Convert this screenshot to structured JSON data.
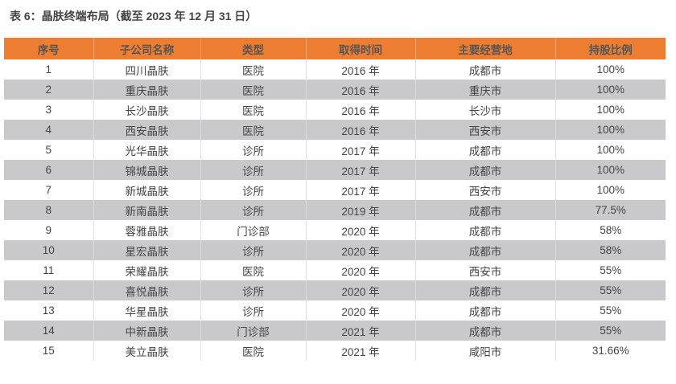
{
  "title": "表 6：晶肤终端布局（截至 2023 年 12 月 31 日）",
  "colors": {
    "header": "#ED7D31",
    "alt_row": "#C9C9CB"
  },
  "table": {
    "headers": [
      "序号",
      "子公司名称",
      "类型",
      "取得时间",
      "主要经营地",
      "持股比例"
    ],
    "rows": [
      [
        "1",
        "四川晶肤",
        "医院",
        "2016 年",
        "成都市",
        "100%"
      ],
      [
        "2",
        "重庆晶肤",
        "医院",
        "2016 年",
        "重庆市",
        "100%"
      ],
      [
        "3",
        "长沙晶肤",
        "医院",
        "2016 年",
        "长沙市",
        "100%"
      ],
      [
        "4",
        "西安晶肤",
        "医院",
        "2016 年",
        "西安市",
        "100%"
      ],
      [
        "5",
        "光华晶肤",
        "诊所",
        "2017 年",
        "成都市",
        "100%"
      ],
      [
        "6",
        "锦城晶肤",
        "诊所",
        "2017 年",
        "成都市",
        "100%"
      ],
      [
        "7",
        "新城晶肤",
        "诊所",
        "2017 年",
        "西安市",
        "100%"
      ],
      [
        "8",
        "新南晶肤",
        "诊所",
        "2019 年",
        "成都市",
        "77.5%"
      ],
      [
        "9",
        "蓉雅晶肤",
        "门诊部",
        "2020 年",
        "成都市",
        "58%"
      ],
      [
        "10",
        "星宏晶肤",
        "诊所",
        "2020 年",
        "成都市",
        "58%"
      ],
      [
        "11",
        "荣耀晶肤",
        "医院",
        "2020 年",
        "西安市",
        "55%"
      ],
      [
        "12",
        "喜悦晶肤",
        "诊所",
        "2020 年",
        "成都市",
        "55%"
      ],
      [
        "13",
        "华星晶肤",
        "诊所",
        "2020 年",
        "成都市",
        "55%"
      ],
      [
        "14",
        "中新晶肤",
        "门诊部",
        "2021 年",
        "成都市",
        "55%"
      ],
      [
        "15",
        "美立晶肤",
        "医院",
        "2021 年",
        "咸阳市",
        "31.66%"
      ]
    ]
  }
}
